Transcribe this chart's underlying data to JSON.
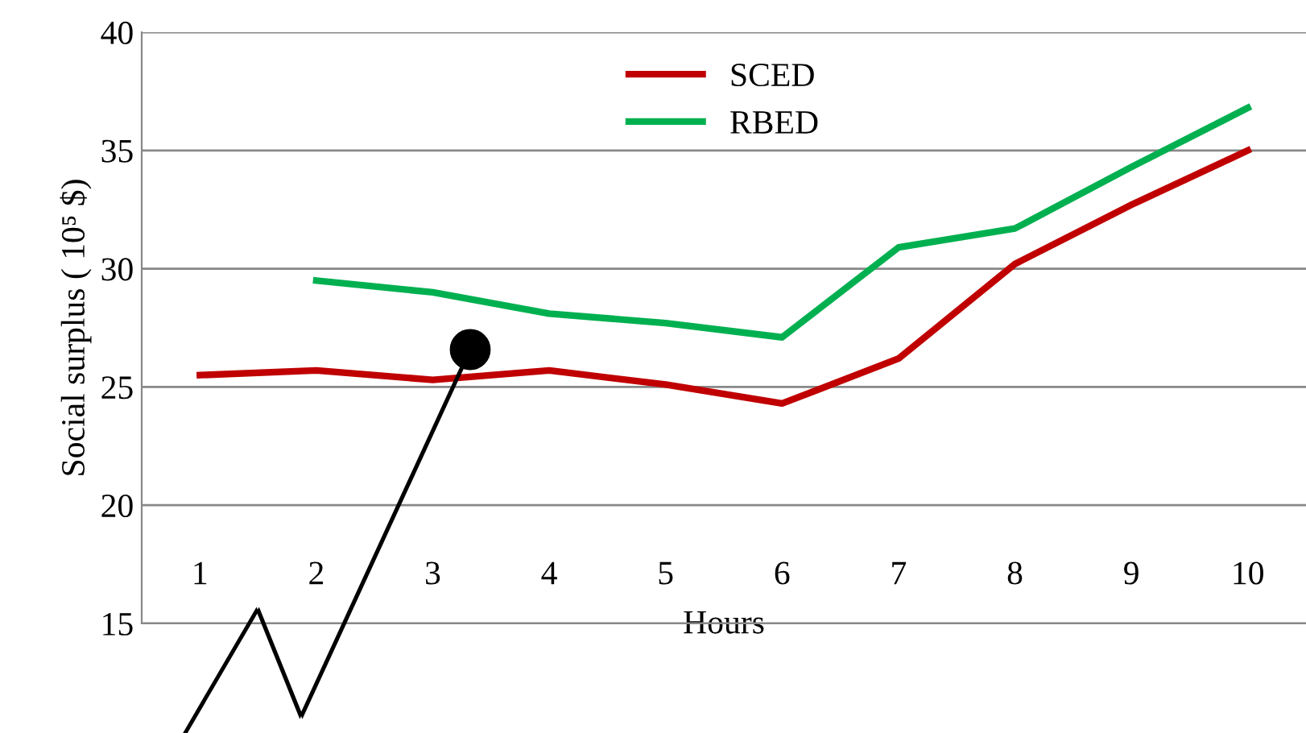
{
  "chart_data": {
    "type": "line",
    "ylabel": "Social surplus ( 10⁵ $)",
    "xlabel": "Hours",
    "categories": [
      "1",
      "2",
      "3",
      "4",
      "5",
      "6",
      "7",
      "8",
      "9",
      "10"
    ],
    "series": [
      {
        "name": "SCED",
        "color": "#c00000",
        "values": [
          25.5,
          25.7,
          25.3,
          25.7,
          25.1,
          24.3,
          26.2,
          30.2,
          32.7,
          35.0
        ]
      },
      {
        "name": "RBED",
        "color": "#00b050",
        "values": [
          null,
          29.5,
          29.0,
          28.1,
          27.7,
          27.1,
          30.9,
          31.7,
          34.3,
          36.8
        ]
      }
    ],
    "ylim": [
      15,
      40
    ],
    "yticks": [
      15,
      20,
      25,
      30,
      35,
      40
    ],
    "grid": "y",
    "legend": "top",
    "marker": "none",
    "line_style": "solid"
  }
}
